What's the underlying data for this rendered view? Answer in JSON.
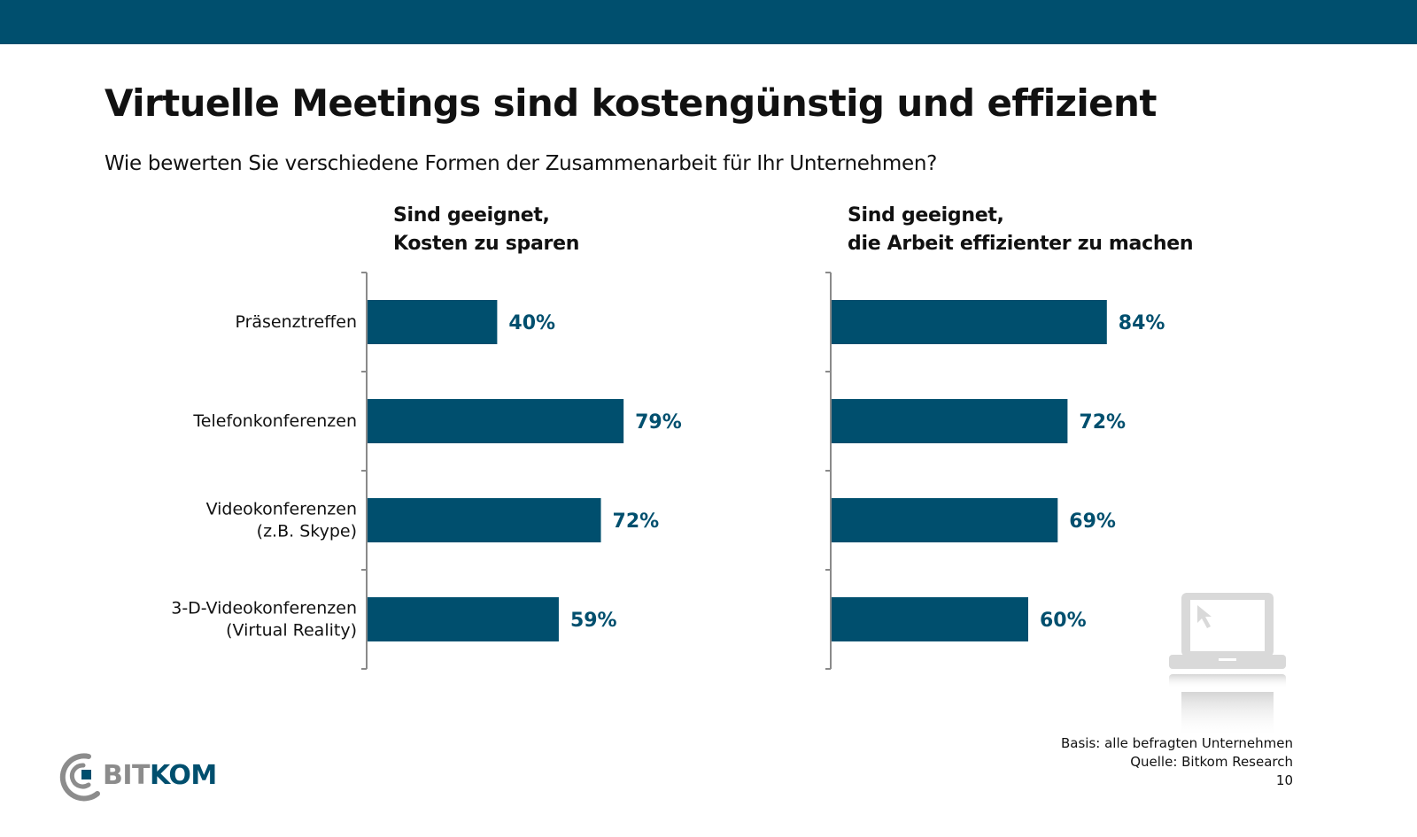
{
  "slide": {
    "title": "Virtuelle Meetings sind kostengünstig und effizient",
    "subtitle": "Wie bewerten Sie verschiedene Formen der Zusammenarbeit für Ihr Unternehmen?"
  },
  "colors": {
    "header_bar": "#004f6e",
    "bar": "#004f6e",
    "value_label": "#004f6e",
    "axis": "#8a8a8a"
  },
  "chart_data": [
    {
      "type": "bar",
      "orientation": "horizontal",
      "title_lines": [
        "Sind geeignet,",
        "Kosten zu sparen"
      ],
      "categories": [
        [
          "Präsenztreffen"
        ],
        [
          "Telefonkonferenzen"
        ],
        [
          "Videokonferenzen",
          "(z.B. Skype)"
        ],
        [
          "3-D-Videokonferenzen",
          "(Virtual Reality)"
        ]
      ],
      "values": [
        40,
        79,
        72,
        59
      ],
      "value_labels": [
        "40%",
        "79%",
        "72%",
        "59%"
      ],
      "unit": "%",
      "xlim": [
        0,
        100
      ],
      "grid": false
    },
    {
      "type": "bar",
      "orientation": "horizontal",
      "title_lines": [
        "Sind geeignet,",
        "die Arbeit effizienter zu machen"
      ],
      "categories": [
        [
          "Präsenztreffen"
        ],
        [
          "Telefonkonferenzen"
        ],
        [
          "Videokonferenzen",
          "(z.B. Skype)"
        ],
        [
          "3-D-Videokonferenzen",
          "(Virtual Reality)"
        ]
      ],
      "values": [
        84,
        72,
        69,
        60
      ],
      "value_labels": [
        "84%",
        "72%",
        "69%",
        "60%"
      ],
      "unit": "%",
      "xlim": [
        0,
        100
      ],
      "grid": false
    }
  ],
  "footer": {
    "basis": "Basis: alle befragten Unternehmen",
    "source": "Quelle: Bitkom Research",
    "page_number": "10",
    "logo_left": "BIT",
    "logo_right": "KOM"
  },
  "icons": [
    "laptop-cursor-icon",
    "bitkom-logo"
  ]
}
